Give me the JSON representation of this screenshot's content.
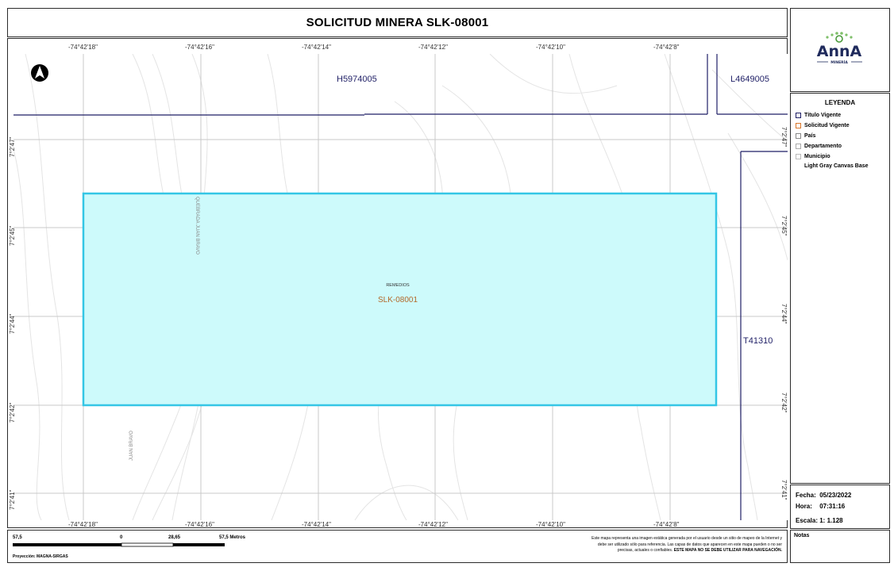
{
  "title": "SOLICITUD MINERA SLK-08001",
  "map": {
    "top_coords": [
      "-74°42'18\"",
      "-74°42'16\"",
      "-74°42'14\"",
      "-74°42'12\"",
      "-74°42'10\"",
      "-74°42'8\""
    ],
    "bottom_coords": [
      "-74°42'18\"",
      "-74°42'16\"",
      "-74°42'14\"",
      "-74°42'12\"",
      "-74°42'10\"",
      "-74°42'8\""
    ],
    "left_coords": [
      "7°2'47\"",
      "7°2'45\"",
      "7°2'44\"",
      "7°2'42\"",
      "7°2'41\""
    ],
    "right_coords": [
      "7°2'47\"",
      "7°2'45\"",
      "7°2'44\"",
      "7°2'42\"",
      "7°2'41\""
    ],
    "title_labels": {
      "h": "H5974005",
      "l": "L4649005",
      "t": "T41310"
    },
    "polygon": {
      "place": "REMEDIOS",
      "code": "SLK-08001"
    },
    "roads": {
      "a": "QUEBRADA JUAN BRAVO",
      "b": "JUAN BRAVO"
    },
    "colors": {
      "polygon_fill": "#cdfafb",
      "polygon_stroke": "#34c6e5",
      "titulo_line": "#1f1f66",
      "grid": "#c8c8c8"
    }
  },
  "logo": {
    "name": "AnnA",
    "sub": "MINERÍA"
  },
  "legend": {
    "title": "LEYENDA",
    "items": [
      {
        "label": "Título Vigente",
        "color": "#1f1f66"
      },
      {
        "label": "Solicitud Vigente",
        "color": "#d9772b"
      },
      {
        "label": "País",
        "color": "#888888"
      },
      {
        "label": "Departamento",
        "color": "#aaaaaa"
      },
      {
        "label": "Municipio",
        "color": "#bbbbbb"
      },
      {
        "label": "Light Gray Canvas Base",
        "color": ""
      }
    ]
  },
  "info": {
    "fecha_label": "Fecha:",
    "fecha": "05/23/2022",
    "hora_label": "Hora:",
    "hora": "07:31:16",
    "escala_label": "Escala:",
    "escala": "1: 1.128"
  },
  "notes_label": "Notas",
  "footer": {
    "scale_ticks": [
      "57,5",
      "0",
      "28,65",
      "57,5 Metros"
    ],
    "projection": "Proyección: MAGNA-SIRGAS",
    "disclaimer": "Este mapa representa una imagen estática generada por el usuario desde un sitio de mapeo de la Internet y debe ser utilizado sólo para referencia. Las capas de datos que aparecen en este mapa pueden o no ser precisas, actuales o confiables.",
    "disclaimer_strong": "ESTE MAPA NO SE DEBE UTILIZAR PARA NAVEGACIÓN."
  }
}
